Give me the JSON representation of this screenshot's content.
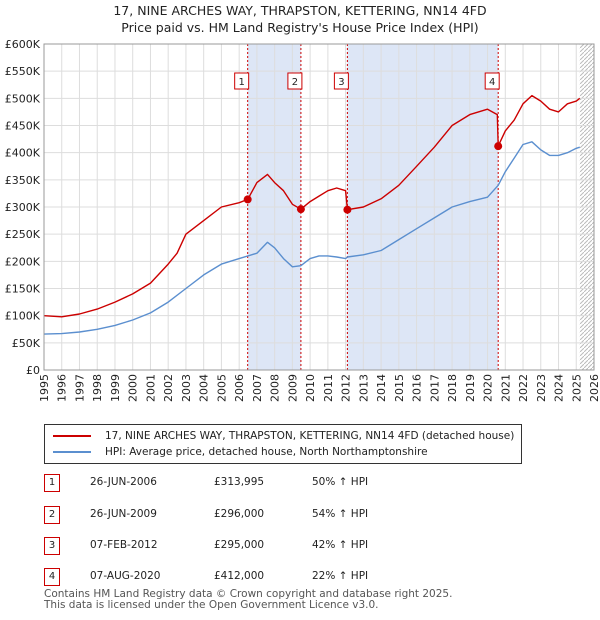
{
  "title_line1": "17, NINE ARCHES WAY, THRAPSTON, KETTERING, NN14 4FD",
  "title_line2": "Price paid vs. HM Land Registry's House Price Index (HPI)",
  "colors": {
    "property": "#cc0000",
    "hpi": "#5b8fcf",
    "shade": "#dde6f6",
    "grid": "#dddddd"
  },
  "legend": {
    "property_label": "17, NINE ARCHES WAY, THRAPSTON, KETTERING, NN14 4FD (detached house)",
    "hpi_label": "HPI: Average price, detached house, North Northamptonshire"
  },
  "transactions": [
    {
      "num": "1",
      "date": "26-JUN-2006",
      "price": "£313,995",
      "hpi": "50% ↑ HPI"
    },
    {
      "num": "2",
      "date": "26-JUN-2009",
      "price": "£296,000",
      "hpi": "54% ↑ HPI"
    },
    {
      "num": "3",
      "date": "07-FEB-2012",
      "price": "£295,000",
      "hpi": "42% ↑ HPI"
    },
    {
      "num": "4",
      "date": "07-AUG-2020",
      "price": "£412,000",
      "hpi": "22% ↑ HPI"
    }
  ],
  "footer": {
    "line1": "Contains HM Land Registry data © Crown copyright and database right 2025.",
    "line2": "This data is licensed under the Open Government Licence v3.0."
  },
  "chart_data": {
    "type": "line",
    "title": "17, NINE ARCHES WAY, THRAPSTON, KETTERING, NN14 4FD",
    "subtitle": "Price paid vs. HM Land Registry's House Price Index (HPI)",
    "xlabel": "",
    "ylabel": "",
    "xlim": [
      1995,
      2026
    ],
    "ylim": [
      0,
      600000
    ],
    "x_ticks": [
      1995,
      1996,
      1997,
      1998,
      1999,
      2000,
      2001,
      2002,
      2003,
      2004,
      2005,
      2006,
      2007,
      2008,
      2009,
      2010,
      2011,
      2012,
      2013,
      2014,
      2015,
      2016,
      2017,
      2018,
      2019,
      2020,
      2021,
      2022,
      2023,
      2024,
      2025,
      2026
    ],
    "y_ticks": [
      0,
      50000,
      100000,
      150000,
      200000,
      250000,
      300000,
      350000,
      400000,
      450000,
      500000,
      550000,
      600000
    ],
    "y_tick_labels": [
      "£0",
      "£50K",
      "£100K",
      "£150K",
      "£200K",
      "£250K",
      "£300K",
      "£350K",
      "£400K",
      "£450K",
      "£500K",
      "£550K",
      "£600K"
    ],
    "shaded_periods": [
      [
        2006.48,
        2009.48
      ],
      [
        2012.1,
        2020.6
      ]
    ],
    "forecast_start": 2025.2,
    "series": [
      {
        "name": "17, NINE ARCHES WAY, THRAPSTON, KETTERING, NN14 4FD (detached house)",
        "x": [
          1995,
          1996,
          1997,
          1998,
          1999,
          2000,
          2001,
          2002,
          2002.5,
          2003,
          2004,
          2005,
          2006,
          2006.48,
          2007,
          2007.6,
          2008,
          2008.5,
          2009,
          2009.48,
          2010,
          2010.5,
          2011,
          2011.5,
          2012,
          2012.1,
          2013,
          2014,
          2015,
          2016,
          2017,
          2018,
          2019,
          2020,
          2020.55,
          2020.6,
          2021,
          2021.5,
          2022,
          2022.5,
          2023,
          2023.5,
          2024,
          2024.5,
          2025,
          2025.2
        ],
        "y": [
          100000,
          98000,
          103000,
          112000,
          125000,
          140000,
          160000,
          195000,
          215000,
          250000,
          275000,
          300000,
          308000,
          313995,
          345000,
          360000,
          345000,
          330000,
          305000,
          296000,
          310000,
          320000,
          330000,
          335000,
          330000,
          295000,
          300000,
          315000,
          340000,
          375000,
          410000,
          450000,
          470000,
          480000,
          470000,
          412000,
          440000,
          460000,
          490000,
          505000,
          495000,
          480000,
          475000,
          490000,
          495000,
          500000
        ]
      },
      {
        "name": "HPI: Average price, detached house, North Northamptonshire",
        "x": [
          1995,
          1996,
          1997,
          1998,
          1999,
          2000,
          2001,
          2002,
          2003,
          2004,
          2005,
          2006,
          2007,
          2007.6,
          2008,
          2008.5,
          2009,
          2009.48,
          2010,
          2010.5,
          2011,
          2011.5,
          2012,
          2012.1,
          2013,
          2014,
          2015,
          2016,
          2017,
          2018,
          2019,
          2020,
          2020.6,
          2021,
          2021.5,
          2022,
          2022.5,
          2023,
          2023.5,
          2024,
          2024.5,
          2025,
          2025.2
        ],
        "y": [
          66000,
          67000,
          70000,
          75000,
          82000,
          92000,
          105000,
          125000,
          150000,
          175000,
          195000,
          205000,
          215000,
          235000,
          225000,
          205000,
          190000,
          192000,
          205000,
          210000,
          210000,
          208000,
          205000,
          208000,
          212000,
          220000,
          240000,
          260000,
          280000,
          300000,
          310000,
          318000,
          340000,
          365000,
          390000,
          415000,
          420000,
          405000,
          395000,
          395000,
          400000,
          408000,
          410000
        ]
      }
    ],
    "annotations": [
      {
        "label": "1",
        "x": 2006.48,
        "y": 313995
      },
      {
        "label": "2",
        "x": 2009.48,
        "y": 296000
      },
      {
        "label": "3",
        "x": 2012.1,
        "y": 295000
      },
      {
        "label": "4",
        "x": 2020.6,
        "y": 412000
      }
    ]
  }
}
